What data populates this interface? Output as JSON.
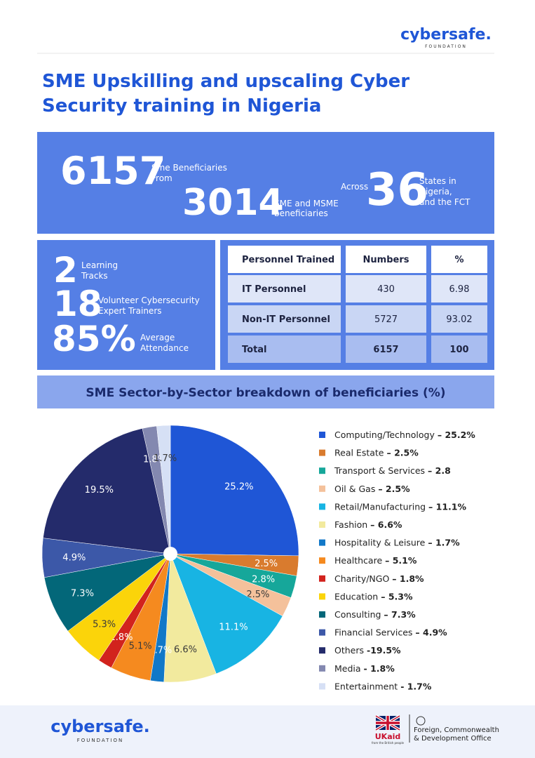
{
  "header": {
    "logo": "cybersafe.",
    "logo_sub": "FOUNDATION",
    "title_lines": [
      "SME Upskilling and upscaling Cyber",
      "Security training in Nigeria"
    ]
  },
  "stats": {
    "beneficiaries": {
      "value": 6157,
      "label_lines": [
        "Sme Beneficiaries",
        "From"
      ]
    },
    "sme": {
      "value": 3014,
      "label_lines": [
        "SME and MSME",
        "beneficiaries"
      ]
    },
    "states": {
      "prefix": "Across",
      "value": 36,
      "label_lines": [
        "States in",
        "Nigeria,",
        "and the FCT"
      ]
    }
  },
  "highlights": [
    {
      "value": 2,
      "label_lines": [
        "Learning",
        "Tracks"
      ]
    },
    {
      "value": 18,
      "label_lines": [
        "Volunteer Cybersecurity",
        "Expert Trainers"
      ]
    },
    {
      "value": "85%",
      "label_lines": [
        "Average",
        "Attendance"
      ]
    }
  ],
  "table": {
    "columns": [
      "Personnel Trained",
      "Numbers",
      "%"
    ],
    "rows": [
      [
        "IT Personnel",
        430,
        6.98
      ],
      [
        "Non-IT Personnel",
        5727,
        93.02
      ],
      [
        "Total",
        6157,
        100
      ]
    ]
  },
  "chart_data": {
    "type": "pie",
    "title": "SME Sector-by-Sector breakdown of beneficiaries (%)",
    "categories": [
      "Computing/Technology",
      "Real Estate",
      "Transport & Services",
      "Oil & Gas",
      "Retail/Manufacturing",
      "Fashion",
      "Hospitality & Leisure",
      "Healthcare",
      "Charity/NGO",
      "Education",
      "Consulting",
      "Financial Services",
      "Others",
      "Media",
      "Entertainment"
    ],
    "values": [
      25.2,
      2.5,
      2.8,
      2.5,
      11.1,
      6.6,
      1.7,
      5.1,
      1.8,
      5.3,
      7.3,
      4.9,
      19.5,
      1.8,
      1.7
    ],
    "value_labels": [
      "25.2%",
      "2.5%",
      "2.8%",
      "2.5%",
      "11.1%",
      "6.6%",
      "1.7%",
      "5.1%",
      "1.8%",
      "5.3%",
      "7.3%",
      "4.9%",
      "19.5%",
      "1.8%",
      "1.7%"
    ],
    "legend_value_labels": [
      "– 25.2%",
      "– 2.5%",
      "– 2.8",
      "– 2.5%",
      "– 11.1%",
      "– 6.6%",
      "– 1.7%",
      "– 5.1%",
      "– 1.8%",
      "– 5.3%",
      "– 7.3%",
      "– 4.9%",
      "-19.5%",
      "- 1.8%",
      "- 1.7%"
    ],
    "colors": [
      "#1f56d6",
      "#d97b2e",
      "#16a79a",
      "#f4c19b",
      "#18b4e3",
      "#f2ea9e",
      "#1178c8",
      "#f58a1f",
      "#d2231d",
      "#fbd40a",
      "#036779",
      "#3c58a8",
      "#242b6b",
      "#8388b0",
      "#d6e0f5"
    ]
  },
  "footer": {
    "logo": "cybersafe.",
    "logo_sub": "FOUNDATION",
    "uk_aid": "UKaid",
    "uk_aid_sub": "from the British people",
    "fcdo_lines": [
      "Foreign, Commonwealth",
      "& Development Office"
    ]
  }
}
